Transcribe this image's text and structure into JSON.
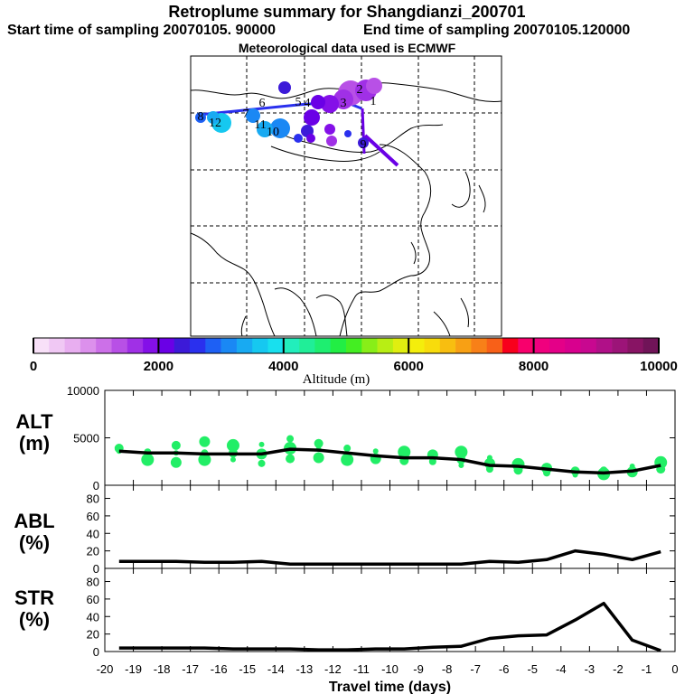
{
  "header": {
    "title": "Retroplume summary for Shangdianzi_200701",
    "start_time": "Start time of sampling 20070105. 90000",
    "end_time": "End time of sampling 20070105.120000",
    "met_data": "Meteorological data used is ECMWF"
  },
  "colorbar": {
    "label": "Altitude (m)",
    "tick_labels": [
      "0",
      "2000",
      "4000",
      "6000",
      "8000",
      "10000"
    ],
    "range": [
      0,
      10000
    ]
  },
  "map_labels": [
    "1",
    "2",
    "3",
    "4",
    "5",
    "6",
    "7",
    "8",
    "9",
    "10",
    "11",
    "12"
  ],
  "chart_data": [
    {
      "type": "line",
      "panel": "ALT",
      "title": "ALT",
      "ylabel": "(m)",
      "ylim": [
        0,
        10000
      ],
      "yticks": [
        "0",
        "5000",
        "10000"
      ],
      "x": [
        -19.5,
        -18.5,
        -17.5,
        -16.5,
        -15.5,
        -14.5,
        -13.5,
        -12.5,
        -11.5,
        -10.5,
        -9.5,
        -8.5,
        -7.5,
        -6.5,
        -5.5,
        -4.5,
        -3.5,
        -2.5,
        -1.5,
        -0.5
      ],
      "values": [
        3600,
        3400,
        3400,
        3300,
        3300,
        3300,
        3800,
        3700,
        3400,
        3100,
        2900,
        2900,
        2700,
        2100,
        2000,
        1700,
        1400,
        1300,
        1500,
        2100
      ],
      "scatter": [
        [
          -19.5,
          3600
        ],
        [
          -19.5,
          3900
        ],
        [
          -18.5,
          2700
        ],
        [
          -18.5,
          3500
        ],
        [
          -17.5,
          2400
        ],
        [
          -17.5,
          3400
        ],
        [
          -17.5,
          4200
        ],
        [
          -16.5,
          2700
        ],
        [
          -16.5,
          3400
        ],
        [
          -16.5,
          4600
        ],
        [
          -15.5,
          2700
        ],
        [
          -15.5,
          3400
        ],
        [
          -15.5,
          4200
        ],
        [
          -14.5,
          2300
        ],
        [
          -14.5,
          3300
        ],
        [
          -14.5,
          4300
        ],
        [
          -13.5,
          2800
        ],
        [
          -13.5,
          3900
        ],
        [
          -13.5,
          4900
        ],
        [
          -12.5,
          2900
        ],
        [
          -12.5,
          3800
        ],
        [
          -12.5,
          4400
        ],
        [
          -11.5,
          2700
        ],
        [
          -11.5,
          3900
        ],
        [
          -10.5,
          2800
        ],
        [
          -10.5,
          3600
        ],
        [
          -9.5,
          2600
        ],
        [
          -9.5,
          3500
        ],
        [
          -8.5,
          2500
        ],
        [
          -8.5,
          3200
        ],
        [
          -7.5,
          2100
        ],
        [
          -7.5,
          2700
        ],
        [
          -7.5,
          3500
        ],
        [
          -6.5,
          1700
        ],
        [
          -6.5,
          2300
        ],
        [
          -6.5,
          2900
        ],
        [
          -5.5,
          1600
        ],
        [
          -5.5,
          2200
        ],
        [
          -4.5,
          1300
        ],
        [
          -4.5,
          1800
        ],
        [
          -3.5,
          1100
        ],
        [
          -3.5,
          1500
        ],
        [
          -2.5,
          1200
        ],
        [
          -2.5,
          1600
        ],
        [
          -1.5,
          1400
        ],
        [
          -1.5,
          2000
        ],
        [
          -0.5,
          1700
        ],
        [
          -0.5,
          2400
        ]
      ]
    },
    {
      "type": "line",
      "panel": "ABL",
      "title": "ABL",
      "ylabel": "(%)",
      "ylim": [
        0,
        95
      ],
      "yticks": [
        "0",
        "20",
        "40",
        "60",
        "80"
      ],
      "x": [
        -19.5,
        -18.5,
        -17.5,
        -16.5,
        -15.5,
        -14.5,
        -13.5,
        -12.5,
        -11.5,
        -10.5,
        -9.5,
        -8.5,
        -7.5,
        -6.5,
        -5.5,
        -4.5,
        -3.5,
        -2.5,
        -1.5,
        -0.5
      ],
      "values": [
        8,
        8,
        8,
        7,
        7,
        8,
        5,
        5,
        5,
        5,
        5,
        5,
        5,
        8,
        7,
        10,
        20,
        16,
        10,
        19
      ]
    },
    {
      "type": "line",
      "panel": "STR",
      "title": "STR",
      "ylabel": "(%)",
      "ylim": [
        0,
        95
      ],
      "yticks": [
        "0",
        "20",
        "40",
        "60",
        "80"
      ],
      "xlabel": "Travel time (days)",
      "xticks": [
        "-20",
        "-19",
        "-18",
        "-17",
        "-16",
        "-15",
        "-14",
        "-13",
        "-12",
        "-11",
        "-10",
        "-9",
        "-8",
        "-7",
        "-6",
        "-5",
        "-4",
        "-3",
        "-2",
        "-1",
        "0"
      ],
      "xlim": [
        -20,
        0
      ],
      "x": [
        -19.5,
        -18.5,
        -17.5,
        -16.5,
        -15.5,
        -14.5,
        -13.5,
        -12.5,
        -11.5,
        -10.5,
        -9.5,
        -8.5,
        -7.5,
        -6.5,
        -5.5,
        -4.5,
        -3.5,
        -2.5,
        -1.5,
        -0.5
      ],
      "values": [
        4,
        4,
        4,
        4,
        3,
        3,
        3,
        2,
        2,
        3,
        3,
        5,
        6,
        15,
        18,
        19,
        36,
        55,
        13,
        1
      ]
    }
  ]
}
